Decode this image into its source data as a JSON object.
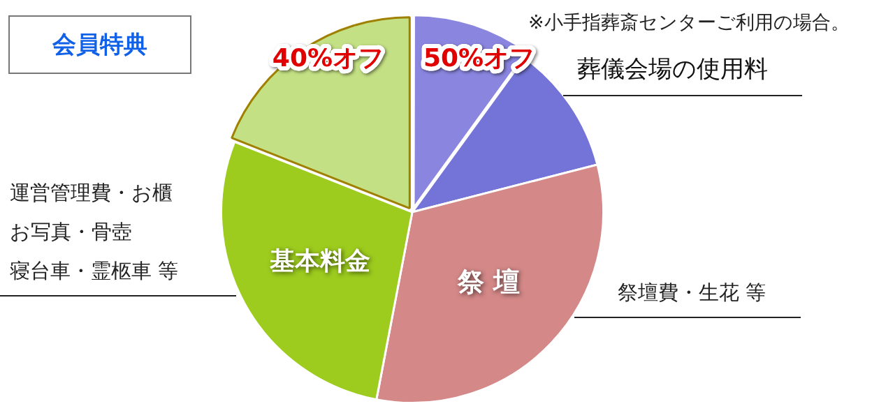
{
  "chart_data": {
    "type": "pie",
    "title": "会員特典",
    "categories": [
      "50%オフ",
      "葬儀会場の使用料",
      "祭 壇",
      "基本料金",
      "40%オフ"
    ],
    "values": [
      10,
      11,
      32,
      28,
      19
    ],
    "colors": [
      "#8a86e0",
      "#7474d8",
      "#d48888",
      "#9dcc1e",
      "#c4e084"
    ],
    "legend": false,
    "annotations": [
      "※小手指葬斎センターご利用の場合。",
      "祭壇費・生花 等",
      "運営管理費・お櫃",
      "お写真・骨壺",
      "寝台車・霊柩車 等"
    ]
  }
}
